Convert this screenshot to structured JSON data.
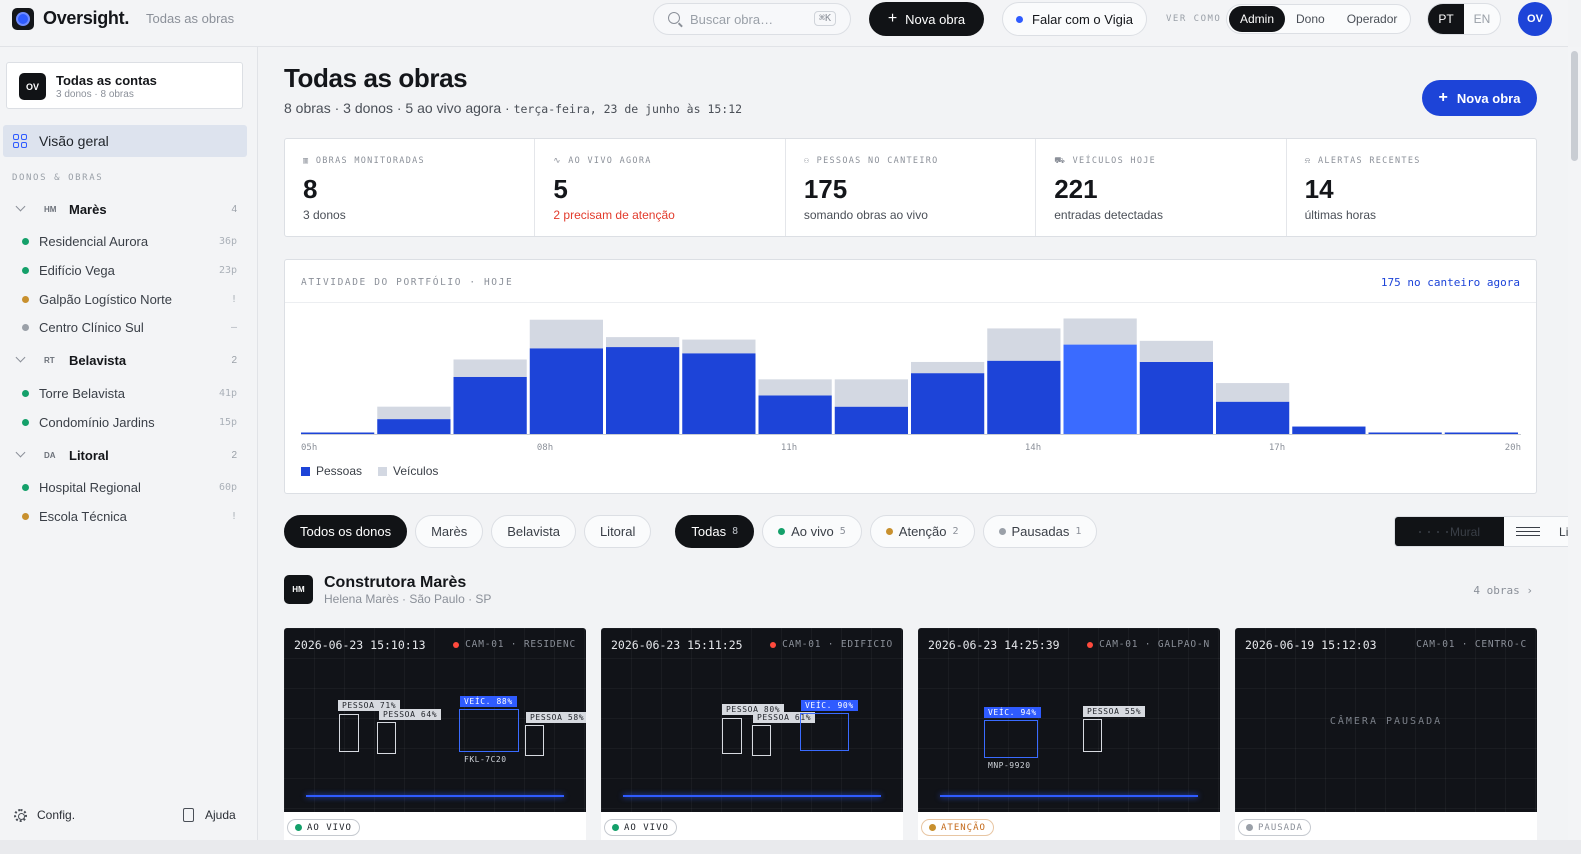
{
  "brand": "Oversight.",
  "breadcrumb": "Todas as obras",
  "search": {
    "placeholder": "Buscar obra…",
    "shortcut": "⌘K"
  },
  "topbar": {
    "new_label": "Nova obra",
    "vigia_label": "Falar com o Vigia",
    "ver_como": "VER COMO",
    "roles": [
      "Admin",
      "Dono",
      "Operador"
    ],
    "langs": [
      "PT",
      "EN"
    ],
    "avatar": "OV"
  },
  "sidebar": {
    "account": {
      "badge": "OV",
      "title": "Todas as contas",
      "subtitle": "3 donos · 8 obras"
    },
    "overview": "Visão geral",
    "section_label": "DONOS & OBRAS",
    "groups": [
      {
        "abbr": "HM",
        "name": "Marès",
        "count": "4",
        "sites": [
          {
            "name": "Residencial Aurora",
            "count": "36p",
            "status": "live"
          },
          {
            "name": "Edifício Vega",
            "count": "23p",
            "status": "live"
          },
          {
            "name": "Galpão Logístico Norte",
            "count": "!",
            "status": "attention"
          },
          {
            "name": "Centro Clínico Sul",
            "count": "–",
            "status": "paused"
          }
        ]
      },
      {
        "abbr": "RT",
        "name": "Belavista",
        "count": "2",
        "sites": [
          {
            "name": "Torre Belavista",
            "count": "41p",
            "status": "live"
          },
          {
            "name": "Condomínio Jardins",
            "count": "15p",
            "status": "live"
          }
        ]
      },
      {
        "abbr": "DA",
        "name": "Litoral",
        "count": "2",
        "sites": [
          {
            "name": "Hospital Regional",
            "count": "60p",
            "status": "live"
          },
          {
            "name": "Escola Técnica",
            "count": "!",
            "status": "attention"
          }
        ]
      }
    ],
    "footer": {
      "config": "Config.",
      "help": "Ajuda"
    }
  },
  "page": {
    "title": "Todas as obras",
    "subtitle": "8 obras · 3 donos · 5 ao vivo agora · ",
    "date": "terça-feira, 23 de junho às 15:12",
    "new_button": "Nova obra"
  },
  "kpis": [
    {
      "label": "OBRAS MONITORADAS",
      "value": "8",
      "note": "3 donos",
      "alert": false
    },
    {
      "label": "AO VIVO AGORA",
      "value": "5",
      "note": "2 precisam de atenção",
      "alert": true
    },
    {
      "label": "PESSOAS NO CANTEIRO",
      "value": "175",
      "note": "somando obras ao vivo",
      "alert": false
    },
    {
      "label": "VEÍCULOS HOJE",
      "value": "221",
      "note": "entradas detectadas",
      "alert": false
    },
    {
      "label": "ALERTAS RECENTES",
      "value": "14",
      "note": "últimas horas",
      "alert": false
    }
  ],
  "chart_data": {
    "type": "bar",
    "title": "ATIVIDADE DO PORTFÓLIO · HOJE",
    "annotation": "175 no canteiro agora",
    "x_tick_labels": [
      "05h",
      "08h",
      "11h",
      "14h",
      "17h",
      "20h"
    ],
    "series": [
      {
        "name": "Pessoas",
        "values": [
          1,
          12,
          46,
          69,
          70,
          65,
          31,
          22,
          49,
          59,
          72,
          58,
          26,
          6,
          1,
          1
        ]
      },
      {
        "name": "Veículos",
        "values": [
          0,
          10,
          14,
          23,
          8,
          11,
          13,
          22,
          9,
          26,
          21,
          17,
          15,
          0,
          0,
          0
        ]
      }
    ],
    "stacked": true,
    "highlight_index": 10,
    "colors": {
      "Pessoas": "#1d44d8",
      "Veículos": "#d3d8e2",
      "highlight": "#3a6bff"
    },
    "ylim": [
      0,
      95
    ],
    "grid": false,
    "legend": "bottom-left"
  },
  "filters": {
    "owners": [
      "Todos os donos",
      "Marès",
      "Belavista",
      "Litoral"
    ],
    "status": [
      {
        "label": "Todas",
        "count": "8",
        "dot": null
      },
      {
        "label": "Ao vivo",
        "count": "5",
        "dot": "#14a06a"
      },
      {
        "label": "Atenção",
        "count": "2",
        "dot": "#c8902e"
      },
      {
        "label": "Pausadas",
        "count": "1",
        "dot": "#9aa0a8"
      }
    ],
    "views": [
      "Mural",
      "Lista"
    ]
  },
  "owner": {
    "badge": "HM",
    "name": "Construtora Marès",
    "subtitle": "Helena Marès · São Paulo · SP",
    "count": "4 obras"
  },
  "cameras": [
    {
      "timestamp": "2026-06-23 15:10:13",
      "cam": "CAM-01 · RESIDENC",
      "rec": true,
      "status": "AO VIVO",
      "kind": "live",
      "tags": [
        "PESSOA 71%",
        "PESSOA 64%",
        "VEÍC. 88%",
        "PESSOA 58%"
      ],
      "plate": "FKL-7C20"
    },
    {
      "timestamp": "2026-06-23 15:11:25",
      "cam": "CAM-01 · EDIFICIO",
      "rec": true,
      "status": "AO VIVO",
      "kind": "live",
      "tags": [
        "PESSOA 80%",
        "PESSOA 61%",
        "VEÍC. 90%"
      ],
      "plate": ""
    },
    {
      "timestamp": "2026-06-23 14:25:39",
      "cam": "CAM-01 · GALPAO-N",
      "rec": true,
      "status": "ATENÇÃO",
      "kind": "att",
      "tags": [
        "VEÍC. 94%",
        "PESSOA 55%"
      ],
      "plate": "MNP-9920"
    },
    {
      "timestamp": "2026-06-19 15:12:03",
      "cam": "CAM-01 · CENTRO-C",
      "rec": false,
      "status": "PAUSADA",
      "kind": "pau",
      "paused_label": "CÂMERA PAUSADA",
      "tags": [],
      "plate": ""
    }
  ],
  "colors": {
    "accent": "#1d44d8",
    "live": "#14a06a",
    "attention": "#c8902e",
    "paused": "#9aa0a8",
    "alert": "#e23b2c"
  }
}
